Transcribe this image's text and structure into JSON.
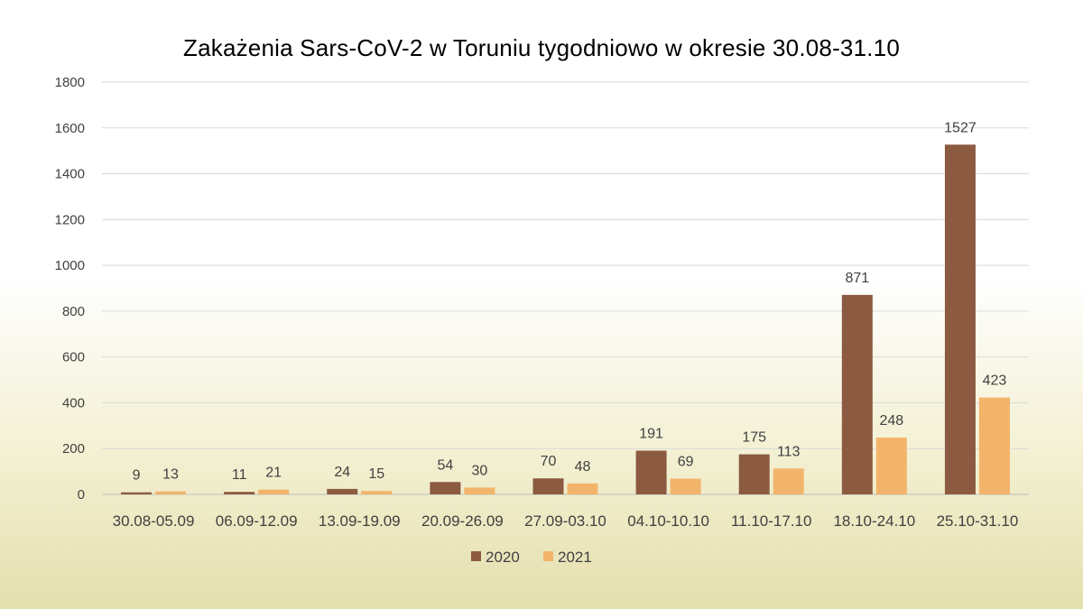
{
  "chart_data": {
    "type": "bar",
    "title": "Zakażenia Sars-CoV-2 w Toruniu tygodniowo w okresie 30.08-31.10",
    "xlabel": "",
    "ylabel": "",
    "ylim": [
      0,
      1800
    ],
    "yticks": [
      0,
      200,
      400,
      600,
      800,
      1000,
      1200,
      1400,
      1600,
      1800
    ],
    "grid": true,
    "legend_position": "bottom",
    "categories": [
      "30.08-05.09",
      "06.09-12.09",
      "13.09-19.09",
      "20.09-26.09",
      "27.09-03.10",
      "04.10-10.10",
      "11.10-17.10",
      "18.10-24.10",
      "25.10-31.10"
    ],
    "series": [
      {
        "name": "2020",
        "color": "#8b5a41",
        "values": [
          9,
          11,
          24,
          54,
          70,
          191,
          175,
          871,
          1527
        ]
      },
      {
        "name": "2021",
        "color": "#f2b46b",
        "values": [
          13,
          21,
          15,
          30,
          48,
          69,
          113,
          248,
          423
        ]
      }
    ],
    "data_labels": true
  }
}
